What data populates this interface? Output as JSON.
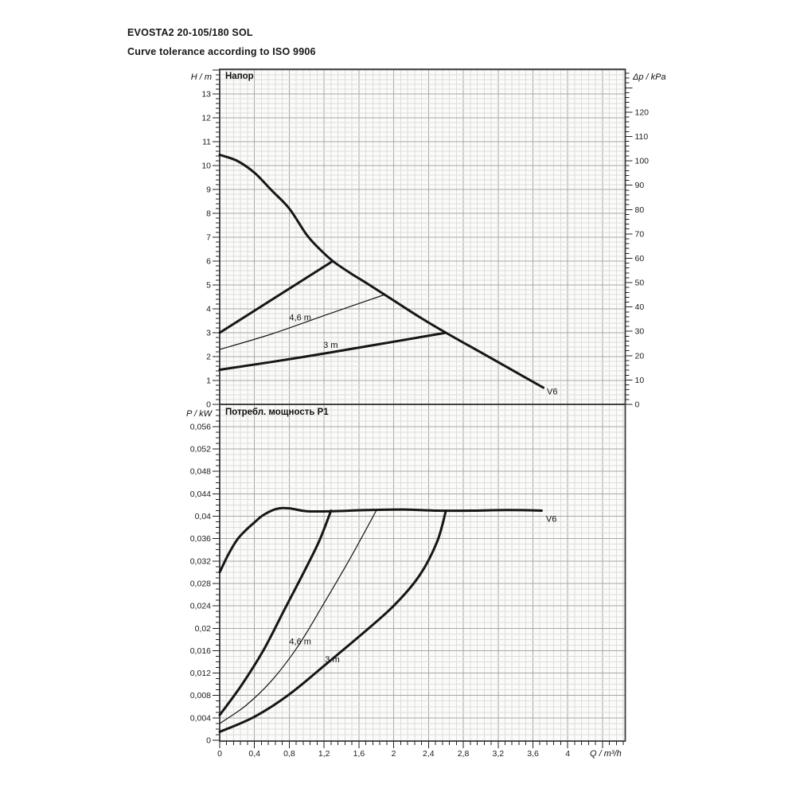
{
  "header": {
    "title": "EVOSTA2 20-105/180 SOL",
    "subtitle": "Curve tolerance according to ISO 9906"
  },
  "chart_data": [
    {
      "type": "line",
      "title": "Напор",
      "x": {
        "label": "Q / m³/h",
        "max": 4.66,
        "major_step": 0.4,
        "minor_step": 0.08
      },
      "y_left": {
        "label": "H / m",
        "unit": "m",
        "max": 14.1,
        "major_step": 1,
        "minor_step": 0.2,
        "tick_labels": [
          "0",
          "1",
          "2",
          "3",
          "4",
          "5",
          "6",
          "7",
          "8",
          "9",
          "10",
          "11",
          "12",
          "13"
        ]
      },
      "y_right": {
        "label": "Δp / kPa",
        "unit": "kPa",
        "max": 137,
        "major_step": 10,
        "minor_step": 2,
        "tick_labels": [
          "0",
          "10",
          "20",
          "30",
          "40",
          "50",
          "60",
          "70",
          "80",
          "90",
          "100",
          "110",
          "120"
        ]
      },
      "series": [
        {
          "name": "v6-head-curve",
          "label": "V6",
          "stroke_width": 3,
          "label_pos": [
            3.76,
            0.42
          ],
          "points": [
            [
              0,
              10.45
            ],
            [
              0.2,
              10.2
            ],
            [
              0.4,
              9.7
            ],
            [
              0.6,
              8.95
            ],
            [
              0.8,
              8.2
            ],
            [
              1.0,
              7.1
            ],
            [
              1.15,
              6.5
            ],
            [
              1.3,
              6.0
            ],
            [
              1.5,
              5.5
            ],
            [
              1.7,
              5.05
            ],
            [
              2.0,
              4.35
            ],
            [
              2.3,
              3.65
            ],
            [
              2.6,
              3.0
            ],
            [
              3.0,
              2.18
            ],
            [
              3.35,
              1.46
            ],
            [
              3.72,
              0.7
            ]
          ]
        },
        {
          "name": "setpoint-6m-head",
          "label": "",
          "stroke_width": 3,
          "points": [
            [
              0,
              3.0
            ],
            [
              0.65,
              4.5
            ],
            [
              1.3,
              6.0
            ]
          ]
        },
        {
          "name": "setpoint-4-6m-head",
          "label": "4,6 m",
          "stroke_width": 1.2,
          "label_pos": [
            0.8,
            3.52
          ],
          "points": [
            [
              0,
              2.3
            ],
            [
              0.6,
              2.95
            ],
            [
              1.2,
              3.72
            ],
            [
              1.9,
              4.6
            ]
          ]
        },
        {
          "name": "setpoint-3m-head",
          "label": "3 m",
          "stroke_width": 3,
          "label_pos": [
            1.19,
            2.37
          ],
          "points": [
            [
              0,
              1.45
            ],
            [
              0.9,
              1.95
            ],
            [
              1.8,
              2.5
            ],
            [
              2.6,
              3.0
            ]
          ]
        }
      ]
    },
    {
      "type": "line",
      "title": "Потребл. мощность P1",
      "x": {
        "label": "Q / m³/h",
        "max": 4.66,
        "major_step": 0.4,
        "minor_step": 0.08,
        "tick_values": [
          0,
          0.4,
          0.8,
          1.2,
          1.6,
          2,
          2.4,
          2.8,
          3.2,
          3.6,
          4
        ],
        "tick_labels": [
          "0",
          "0,4",
          "0,8",
          "1,2",
          "1,6",
          "2",
          "2,4",
          "2,8",
          "3,2",
          "3,6",
          "4"
        ]
      },
      "y_left": {
        "label": "P / kW",
        "unit": "kW",
        "max": 0.06,
        "major_step": 0.004,
        "minor_step": 0.001,
        "tick_labels": [
          "0",
          "0,004",
          "0,008",
          "0,012",
          "0,016",
          "0,02",
          "0,024",
          "0,028",
          "0,032",
          "0,036",
          "0,04",
          "0,044",
          "0,048",
          "0,052",
          "0,056"
        ]
      },
      "series": [
        {
          "name": "v6-power-curve",
          "label": "V6",
          "stroke_width": 3,
          "label_pos": [
            3.75,
            0.039
          ],
          "points": [
            [
              0,
              0.03
            ],
            [
              0.1,
              0.0332
            ],
            [
              0.2,
              0.0358
            ],
            [
              0.3,
              0.0375
            ],
            [
              0.4,
              0.0389
            ],
            [
              0.5,
              0.0402
            ],
            [
              0.65,
              0.0413
            ],
            [
              0.8,
              0.0414
            ],
            [
              1.0,
              0.0409
            ],
            [
              1.3,
              0.0409
            ],
            [
              1.7,
              0.0411
            ],
            [
              2.1,
              0.0412
            ],
            [
              2.5,
              0.041
            ],
            [
              2.9,
              0.041
            ],
            [
              3.3,
              0.0411
            ],
            [
              3.7,
              0.041
            ]
          ]
        },
        {
          "name": "setpoint-6m-power",
          "label": "",
          "stroke_width": 3,
          "points": [
            [
              0,
              0.0045
            ],
            [
              0.25,
              0.0098
            ],
            [
              0.5,
              0.016
            ],
            [
              0.75,
              0.0235
            ],
            [
              1.0,
              0.031
            ],
            [
              1.15,
              0.0358
            ],
            [
              1.28,
              0.041
            ]
          ]
        },
        {
          "name": "setpoint-4-6m-power",
          "label": "4,6 m",
          "stroke_width": 1.2,
          "label_pos": [
            0.8,
            0.0171
          ],
          "points": [
            [
              0,
              0.003
            ],
            [
              0.3,
              0.0062
            ],
            [
              0.6,
              0.0107
            ],
            [
              0.9,
              0.0168
            ],
            [
              1.2,
              0.0245
            ],
            [
              1.5,
              0.0325
            ],
            [
              1.8,
              0.041
            ]
          ]
        },
        {
          "name": "setpoint-3m-power",
          "label": "3 m",
          "stroke_width": 3,
          "label_pos": [
            1.21,
            0.0139
          ],
          "points": [
            [
              0,
              0.0015
            ],
            [
              0.4,
              0.0042
            ],
            [
              0.8,
              0.0082
            ],
            [
              1.2,
              0.0133
            ],
            [
              1.6,
              0.0185
            ],
            [
              2.0,
              0.024
            ],
            [
              2.3,
              0.0295
            ],
            [
              2.5,
              0.0355
            ],
            [
              2.6,
              0.041
            ]
          ]
        }
      ]
    }
  ]
}
